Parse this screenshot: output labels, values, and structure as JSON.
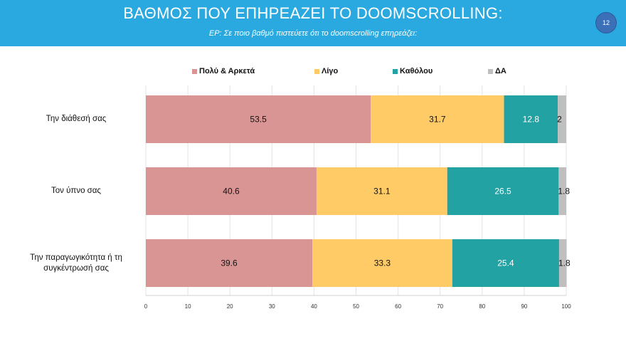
{
  "header": {
    "title": "ΒΑΘΜΟΣ ΠΟΥ ΕΠΗΡΕΑΖΕΙ ΤΟ DOOMSCROLLING:",
    "subtitle": "ΕΡ: Σε ποιο βαθμό πιστεύετε ότι το doomscrolling επηρεάζει:",
    "page_number": "12",
    "background_color": "#29a9df"
  },
  "chart_data": {
    "type": "bar",
    "orientation": "horizontal",
    "stacked": true,
    "title": "ΒΑΘΜΟΣ ΠΟΥ ΕΠΗΡΕΑΖΕΙ ΤΟ DOOMSCROLLING:",
    "xlim": [
      0,
      100
    ],
    "x_ticks": [
      0,
      10,
      20,
      30,
      40,
      50,
      60,
      70,
      80,
      90,
      100
    ],
    "grid": true,
    "legend_position": "top",
    "categories": [
      "Την διάθεσή σας",
      "Τον ύπνο σας",
      "Την παραγωγικότητα ή τη συγκέντρωσή σας"
    ],
    "category_display": [
      [
        "Την διάθεσή σας"
      ],
      [
        "Τον ύπνο σας"
      ],
      [
        "Την παραγωγικότητα ή τη",
        "συγκέντρωσή σας"
      ]
    ],
    "series": [
      {
        "name": "Πολύ & Αρκετά",
        "color": "#d99594",
        "label_color": "#111111",
        "values": [
          53.5,
          40.6,
          39.6
        ],
        "labels": [
          "53.5",
          "40.6",
          "39.6"
        ]
      },
      {
        "name": "Λίγο",
        "color": "#fecb66",
        "label_color": "#111111",
        "values": [
          31.7,
          31.1,
          33.3
        ],
        "labels": [
          "31.7",
          "31.1",
          "33.3"
        ]
      },
      {
        "name": "Καθόλου",
        "color": "#23a2a3",
        "label_color": "#ffffff",
        "values": [
          12.8,
          26.5,
          25.4
        ],
        "labels": [
          "12.8",
          "26.5",
          "25.4"
        ]
      },
      {
        "name": "ΔΑ",
        "color": "#bfbfbf",
        "label_color": "#111111",
        "values": [
          2,
          1.8,
          1.8
        ],
        "labels": [
          "2",
          "1.8",
          "1.8"
        ]
      }
    ]
  }
}
